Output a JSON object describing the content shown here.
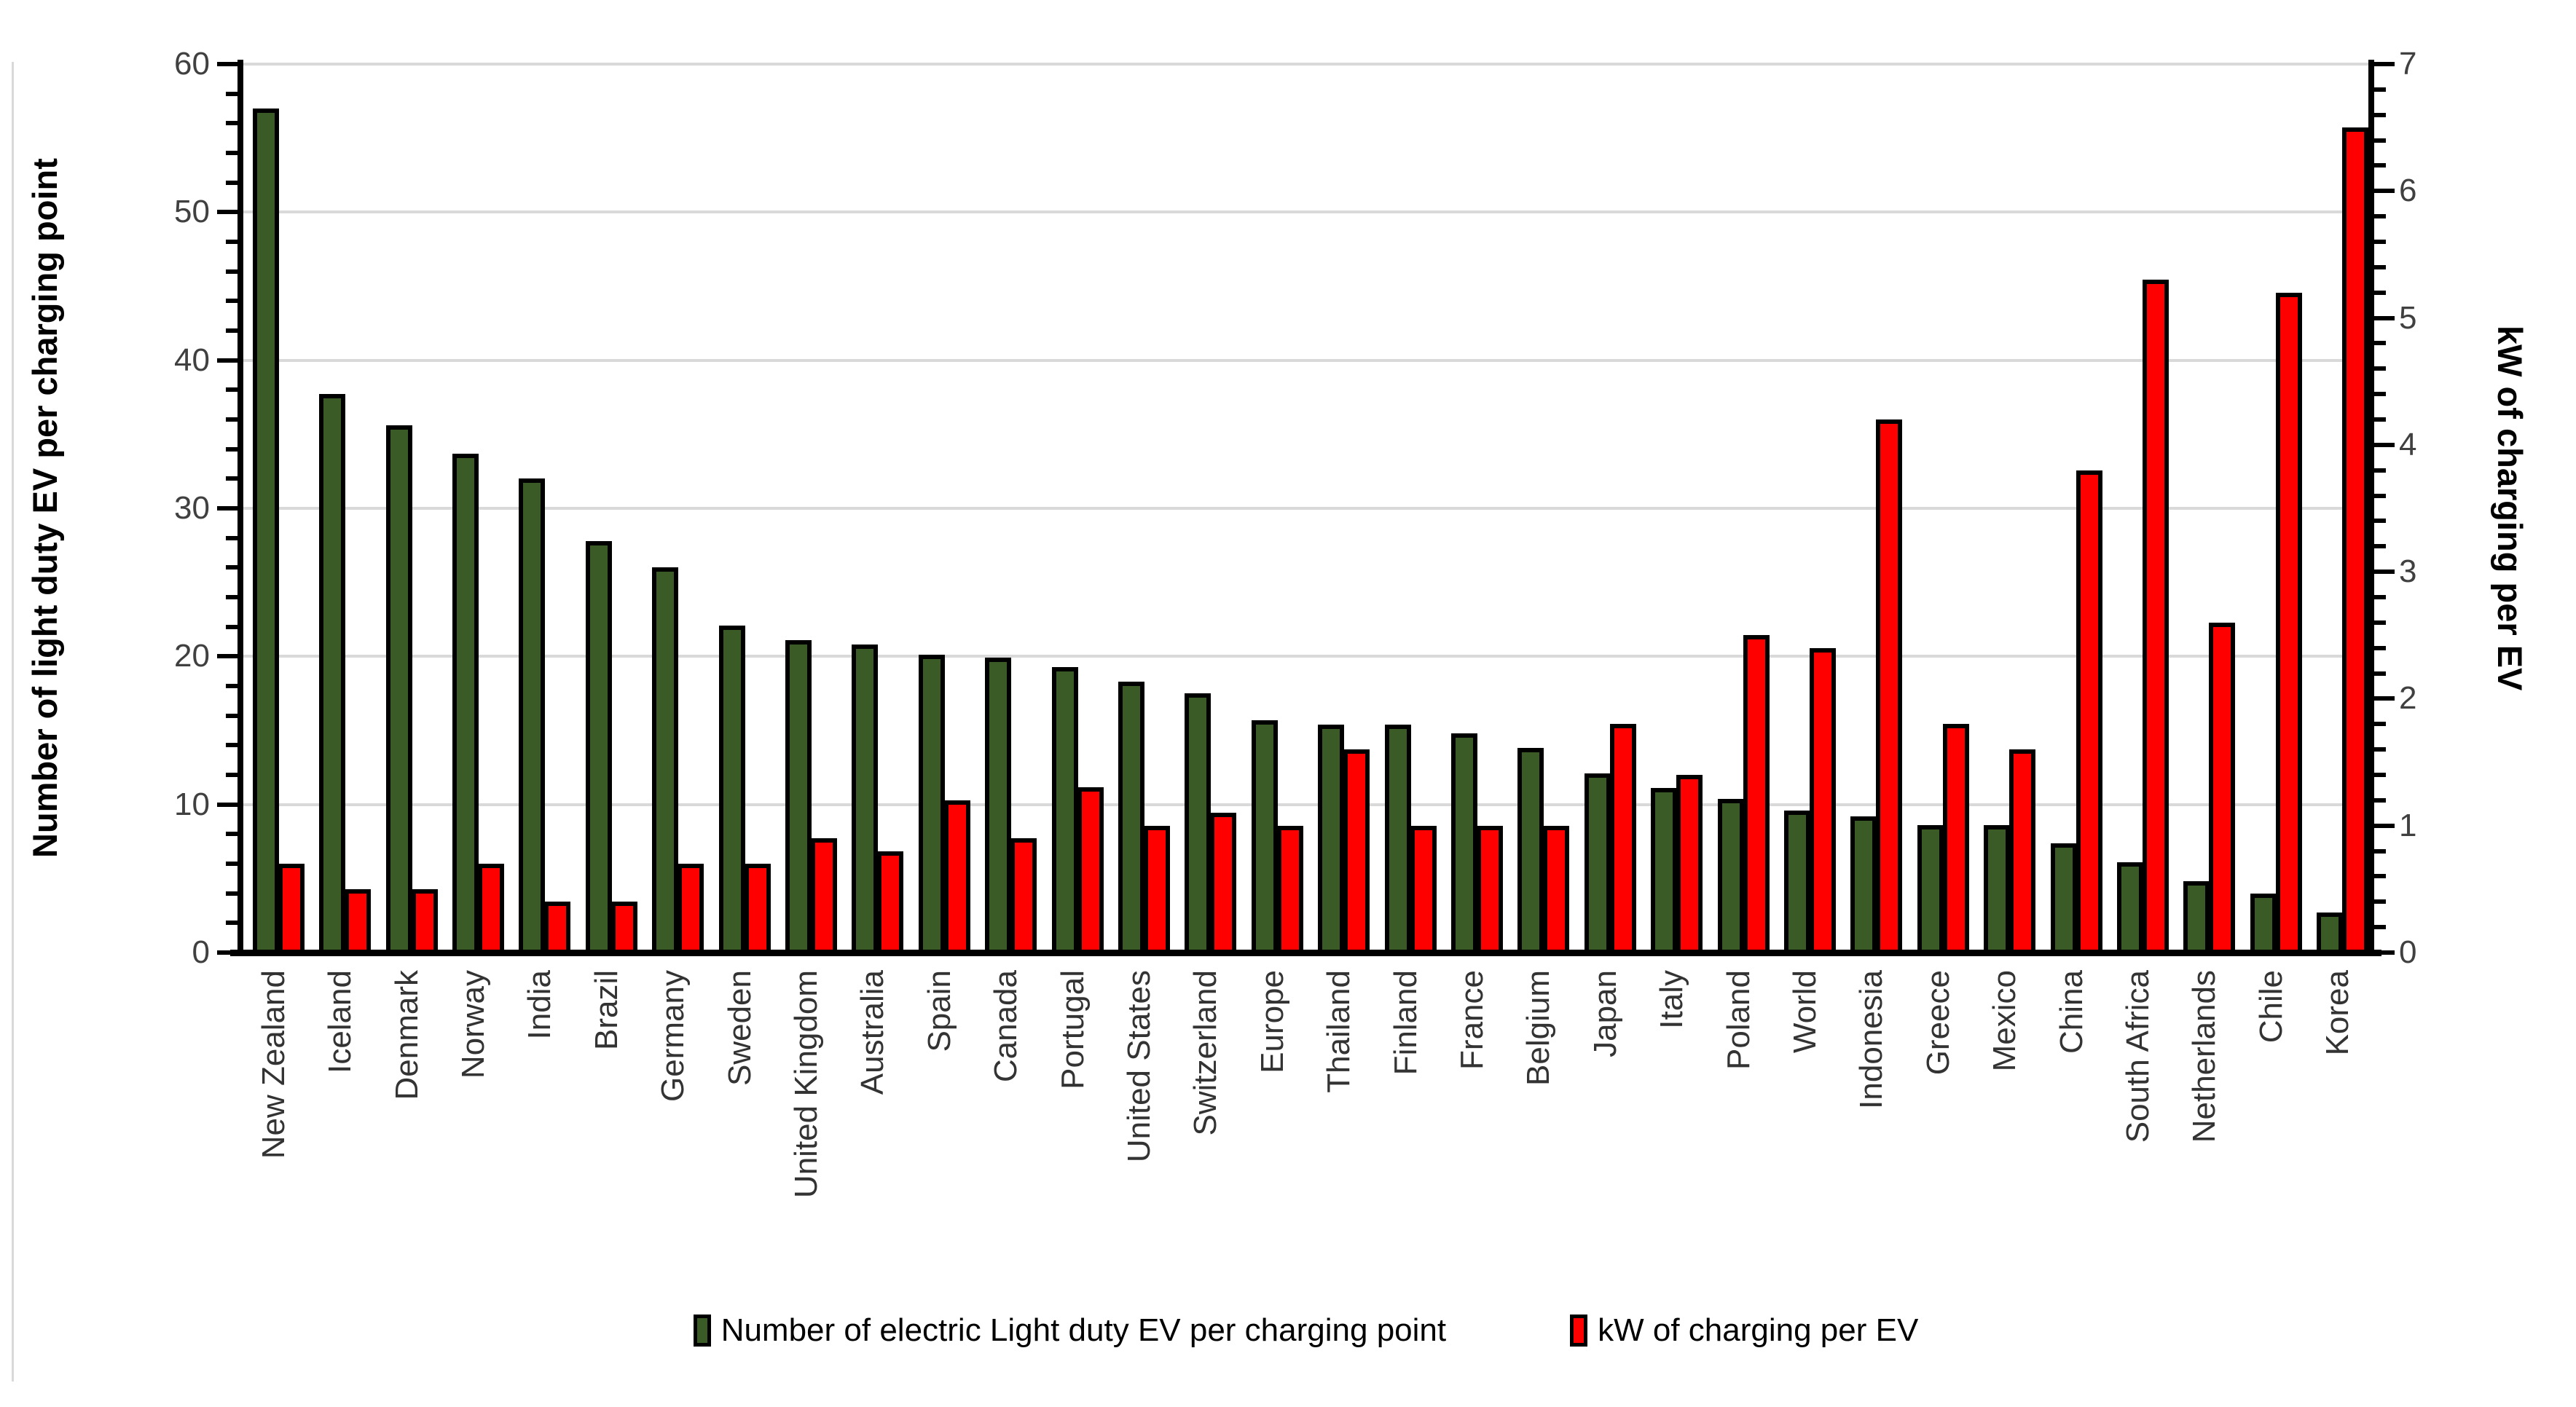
{
  "chart_data": {
    "type": "bar",
    "subtype": "dual-axis-column",
    "categories": [
      "New Zealand",
      "Iceland",
      "Denmark",
      "Norway",
      "India",
      "Brazil",
      "Germany",
      "Sweden",
      "United Kingdom",
      "Australia",
      "Spain",
      "Canada",
      "Portugal",
      "United States",
      "Switzerland",
      "Europe",
      "Thailand",
      "Finland",
      "France",
      "Belgium",
      "Japan",
      "Italy",
      "Poland",
      "World",
      "Indonesia",
      "Greece",
      "Mexico",
      "China",
      "South Africa",
      "Netherlands",
      "Chile",
      "Korea"
    ],
    "series": [
      {
        "name": "Number of electric Light duty EV per charging point",
        "axis": "left",
        "color": "#3A5B26",
        "values": [
          57,
          37.7,
          35.6,
          33.7,
          32,
          27.8,
          26,
          22.1,
          21.1,
          20.8,
          20.1,
          19.9,
          19.3,
          18.3,
          17.5,
          15.7,
          15.4,
          15.4,
          14.8,
          13.8,
          12.1,
          11.1,
          10.4,
          9.6,
          9.2,
          8.6,
          8.6,
          7.4,
          6.1,
          4.8,
          4.0,
          2.7
        ]
      },
      {
        "name": "kW of charging per EV",
        "axis": "right",
        "color": "#FF0000",
        "values": [
          0.7,
          0.5,
          0.5,
          0.7,
          0.4,
          0.4,
          0.7,
          0.7,
          0.9,
          0.8,
          1.2,
          0.9,
          1.3,
          1.0,
          1.1,
          1.0,
          1.6,
          1.0,
          1.0,
          1.0,
          1.8,
          1.4,
          2.5,
          2.4,
          4.2,
          1.8,
          1.6,
          3.8,
          5.3,
          2.6,
          5.2,
          6.5
        ]
      }
    ],
    "left_axis": {
      "title": "Number of light duty EV per charging point",
      "min": 0,
      "max": 60,
      "major_step": 10,
      "minor_step": 2,
      "tick_labels": [
        "0",
        "10",
        "20",
        "30",
        "40",
        "50",
        "60"
      ]
    },
    "right_axis": {
      "title": "kW of charging per EV",
      "min": 0,
      "max": 7,
      "major_step": 1,
      "minor_step": 0.2,
      "tick_labels": [
        "0",
        "1",
        "2",
        "3",
        "4",
        "5",
        "6",
        "7"
      ]
    },
    "grid": {
      "on": true,
      "color": "#D9D9D9",
      "every_left_units": 10
    },
    "legend_position": "bottom",
    "colors": {
      "series1": "#3A5B26",
      "series2": "#FF0000",
      "axis": "#000000",
      "tick_label": "#404040",
      "category_label": "#333333"
    }
  }
}
